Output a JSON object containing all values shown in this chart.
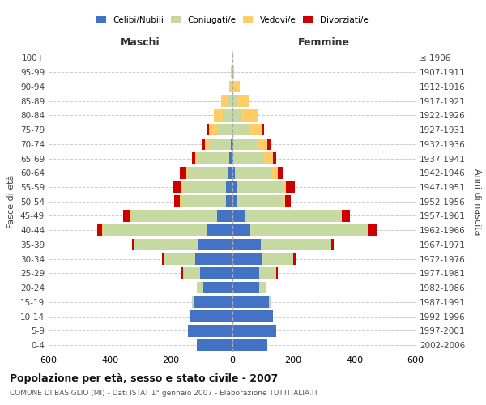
{
  "age_groups": [
    "0-4",
    "5-9",
    "10-14",
    "15-19",
    "20-24",
    "25-29",
    "30-34",
    "35-39",
    "40-44",
    "45-49",
    "50-54",
    "55-59",
    "60-64",
    "65-69",
    "70-74",
    "75-79",
    "80-84",
    "85-89",
    "90-94",
    "95-99",
    "100+"
  ],
  "birth_years": [
    "2002-2006",
    "1997-2001",
    "1992-1996",
    "1987-1991",
    "1982-1986",
    "1977-1981",
    "1972-1976",
    "1967-1971",
    "1962-1966",
    "1957-1961",
    "1952-1956",
    "1947-1951",
    "1942-1946",
    "1937-1941",
    "1932-1936",
    "1927-1931",
    "1922-1926",
    "1917-1921",
    "1912-1916",
    "1907-1911",
    "≤ 1906"
  ],
  "maschi": {
    "celibi": [
      115,
      145,
      140,
      125,
      95,
      105,
      120,
      110,
      80,
      50,
      20,
      20,
      15,
      10,
      5,
      0,
      0,
      0,
      0,
      0,
      0
    ],
    "coniugati": [
      0,
      0,
      0,
      5,
      20,
      55,
      100,
      210,
      340,
      280,
      145,
      140,
      130,
      100,
      70,
      50,
      30,
      15,
      5,
      2,
      0
    ],
    "vedovi": [
      0,
      0,
      0,
      0,
      0,
      0,
      0,
      0,
      5,
      5,
      5,
      5,
      5,
      10,
      15,
      25,
      30,
      20,
      5,
      2,
      0
    ],
    "divorziati": [
      0,
      0,
      0,
      0,
      0,
      5,
      8,
      8,
      15,
      20,
      20,
      30,
      20,
      10,
      10,
      5,
      0,
      0,
      0,
      0,
      0
    ]
  },
  "femmine": {
    "nubili": [
      115,
      145,
      135,
      120,
      90,
      90,
      100,
      95,
      60,
      45,
      15,
      15,
      10,
      5,
      5,
      0,
      0,
      0,
      0,
      0,
      0
    ],
    "coniugate": [
      0,
      0,
      0,
      5,
      20,
      55,
      100,
      230,
      380,
      310,
      150,
      150,
      120,
      100,
      75,
      55,
      30,
      15,
      5,
      2,
      0
    ],
    "vedove": [
      0,
      0,
      0,
      0,
      0,
      0,
      0,
      0,
      5,
      5,
      8,
      10,
      20,
      30,
      35,
      45,
      55,
      40,
      20,
      5,
      0
    ],
    "divorziate": [
      0,
      0,
      0,
      0,
      0,
      5,
      8,
      8,
      30,
      25,
      20,
      30,
      15,
      10,
      10,
      5,
      0,
      0,
      0,
      0,
      0
    ]
  },
  "colors": {
    "celibi": "#4472C4",
    "coniugati": "#C5D9A0",
    "vedovi": "#FFCC66",
    "divorziati": "#CC0000"
  },
  "xlim": 600,
  "title": "Popolazione per età, sesso e stato civile - 2007",
  "subtitle": "COMUNE DI BASIGLIO (MI) - Dati ISTAT 1° gennaio 2007 - Elaborazione TUTTITALIA.IT",
  "ylabel_left": "Fasce di età",
  "ylabel_right": "Anni di nascita",
  "xlabel_left": "Maschi",
  "xlabel_right": "Femmine",
  "background_color": "#ffffff",
  "grid_color": "#cccccc",
  "bar_height": 0.82
}
